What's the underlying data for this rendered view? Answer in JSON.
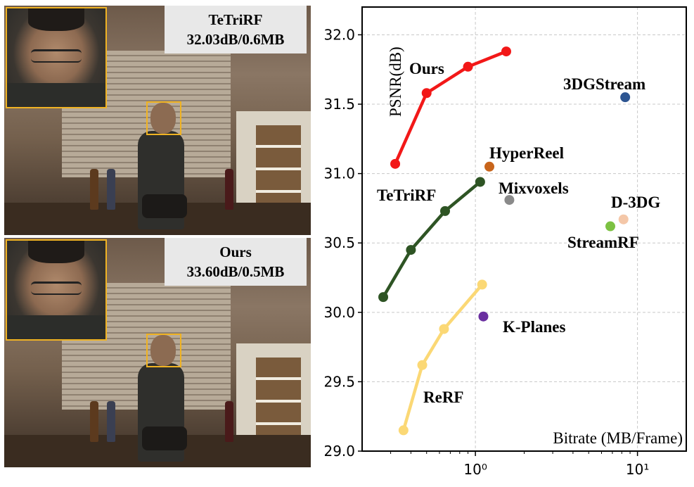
{
  "photos": [
    {
      "method": "TeTriRF",
      "metric": "32.03dB/0.6MB"
    },
    {
      "method": "Ours",
      "metric": "33.60dB/0.5MB"
    }
  ],
  "colors": {
    "crop_box": "#f0b323"
  },
  "chart_data": {
    "type": "scatter",
    "xscale": "log",
    "xlim": [
      0.2,
      20
    ],
    "ylim": [
      29.0,
      32.2
    ],
    "yticks": [
      29.0,
      29.5,
      30.0,
      30.5,
      31.0,
      31.5,
      32.0
    ],
    "ytick_labels": [
      "29.0",
      "29.5",
      "30.0",
      "30.5",
      "31.0",
      "31.5",
      "32.0"
    ],
    "xticks": [
      1,
      10
    ],
    "xtick_labels": [
      "10⁰",
      "10¹"
    ],
    "xlabel": "Bitrate (MB/Frame)",
    "ylabel": "PSNR(dB)",
    "grid": true,
    "series": [
      {
        "name": "Ours",
        "color": "#f21818",
        "connected": true,
        "x": [
          0.32,
          0.5,
          0.9,
          1.55
        ],
        "y": [
          31.07,
          31.58,
          31.77,
          31.88
        ]
      },
      {
        "name": "TeTriRF",
        "color": "#2e5424",
        "connected": true,
        "x": [
          0.27,
          0.4,
          0.65,
          1.07
        ],
        "y": [
          30.11,
          30.45,
          30.73,
          30.94
        ]
      },
      {
        "name": "ReRF",
        "color": "#fbd875",
        "connected": true,
        "x": [
          0.36,
          0.47,
          0.64,
          1.1
        ],
        "y": [
          29.15,
          29.62,
          29.88,
          30.2
        ]
      },
      {
        "name": "3DGStream",
        "color": "#2d5591",
        "connected": false,
        "x": [
          8.4
        ],
        "y": [
          31.55
        ]
      },
      {
        "name": "HyperReel",
        "color": "#c8651b",
        "connected": false,
        "x": [
          1.22
        ],
        "y": [
          31.05
        ]
      },
      {
        "name": "Mixvoxels",
        "color": "#8a8a8a",
        "connected": false,
        "x": [
          1.62
        ],
        "y": [
          30.81
        ]
      },
      {
        "name": "D-3DG",
        "color": "#f4c7a8",
        "connected": false,
        "x": [
          8.2
        ],
        "y": [
          30.67
        ]
      },
      {
        "name": "StreamRF",
        "color": "#7cc142",
        "connected": false,
        "x": [
          6.8
        ],
        "y": [
          30.62
        ]
      },
      {
        "name": "K-Planes",
        "color": "#6a2fa0",
        "connected": false,
        "x": [
          1.12
        ],
        "y": [
          29.97
        ]
      }
    ]
  }
}
